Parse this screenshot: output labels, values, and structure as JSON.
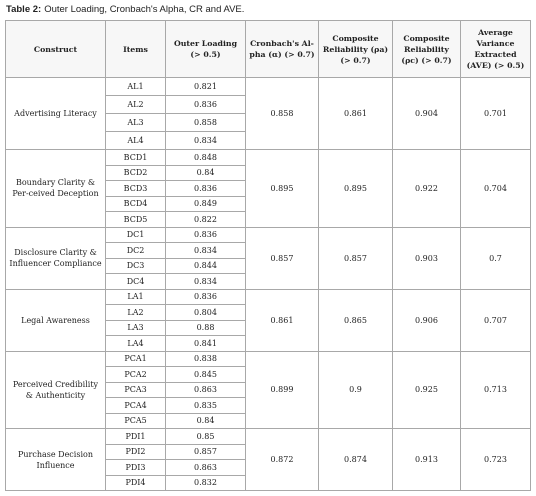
{
  "caption": {
    "label": "Table 2:",
    "text": "Outer Loading, Cronbach's Alpha, CR and AVE."
  },
  "table": {
    "headers": [
      "Construct",
      "Items",
      "Outer Loading (> 0.5)",
      "Cronbach's Al-pha (α) (> 0.7)",
      "Composite Reliability (ρa) (> 0.7)",
      "Composite Reliability (ρc) (> 0.7)",
      "Average Variance Extracted (AVE) (> 0.5)"
    ],
    "groups": [
      {
        "construct": "Advertising Literacy",
        "items": [
          [
            "AL1",
            "0.821"
          ],
          [
            "AL2",
            "0.836"
          ],
          [
            "AL3",
            "0.858"
          ],
          [
            "AL4",
            "0.834"
          ]
        ],
        "alpha": "0.858",
        "rho_a": "0.861",
        "rho_c": "0.904",
        "ave": "0.701"
      },
      {
        "construct": "Boundary Clarity & Per-ceived Deception",
        "items": [
          [
            "BCD1",
            "0.848"
          ],
          [
            "BCD2",
            "0.84"
          ],
          [
            "BCD3",
            "0.836"
          ],
          [
            "BCD4",
            "0.849"
          ],
          [
            "BCD5",
            "0.822"
          ]
        ],
        "alpha": "0.895",
        "rho_a": "0.895",
        "rho_c": "0.922",
        "ave": "0.704"
      },
      {
        "construct": "Disclosure Clarity & Influencer Compliance",
        "items": [
          [
            "DC1",
            "0.836"
          ],
          [
            "DC2",
            "0.834"
          ],
          [
            "DC3",
            "0.844"
          ],
          [
            "DC4",
            "0.834"
          ]
        ],
        "alpha": "0.857",
        "rho_a": "0.857",
        "rho_c": "0.903",
        "ave": "0.7"
      },
      {
        "construct": "Legal Awareness",
        "items": [
          [
            "LA1",
            "0.836"
          ],
          [
            "LA2",
            "0.804"
          ],
          [
            "LA3",
            "0.88"
          ],
          [
            "LA4",
            "0.841"
          ]
        ],
        "alpha": "0.861",
        "rho_a": "0.865",
        "rho_c": "0.906",
        "ave": "0.707"
      },
      {
        "construct": "Perceived Credibility & Authenticity",
        "items": [
          [
            "PCA1",
            "0.838"
          ],
          [
            "PCA2",
            "0.845"
          ],
          [
            "PCA3",
            "0.863"
          ],
          [
            "PCA4",
            "0.835"
          ],
          [
            "PCA5",
            "0.84"
          ]
        ],
        "alpha": "0.899",
        "rho_a": "0.9",
        "rho_c": "0.925",
        "ave": "0.713"
      },
      {
        "construct": "Purchase Decision Influence",
        "items": [
          [
            "PDI1",
            "0.85"
          ],
          [
            "PDI2",
            "0.857"
          ],
          [
            "PDI3",
            "0.863"
          ],
          [
            "PDI4",
            "0.832"
          ]
        ],
        "alpha": "0.872",
        "rho_a": "0.874",
        "rho_c": "0.913",
        "ave": "0.723"
      }
    ]
  }
}
